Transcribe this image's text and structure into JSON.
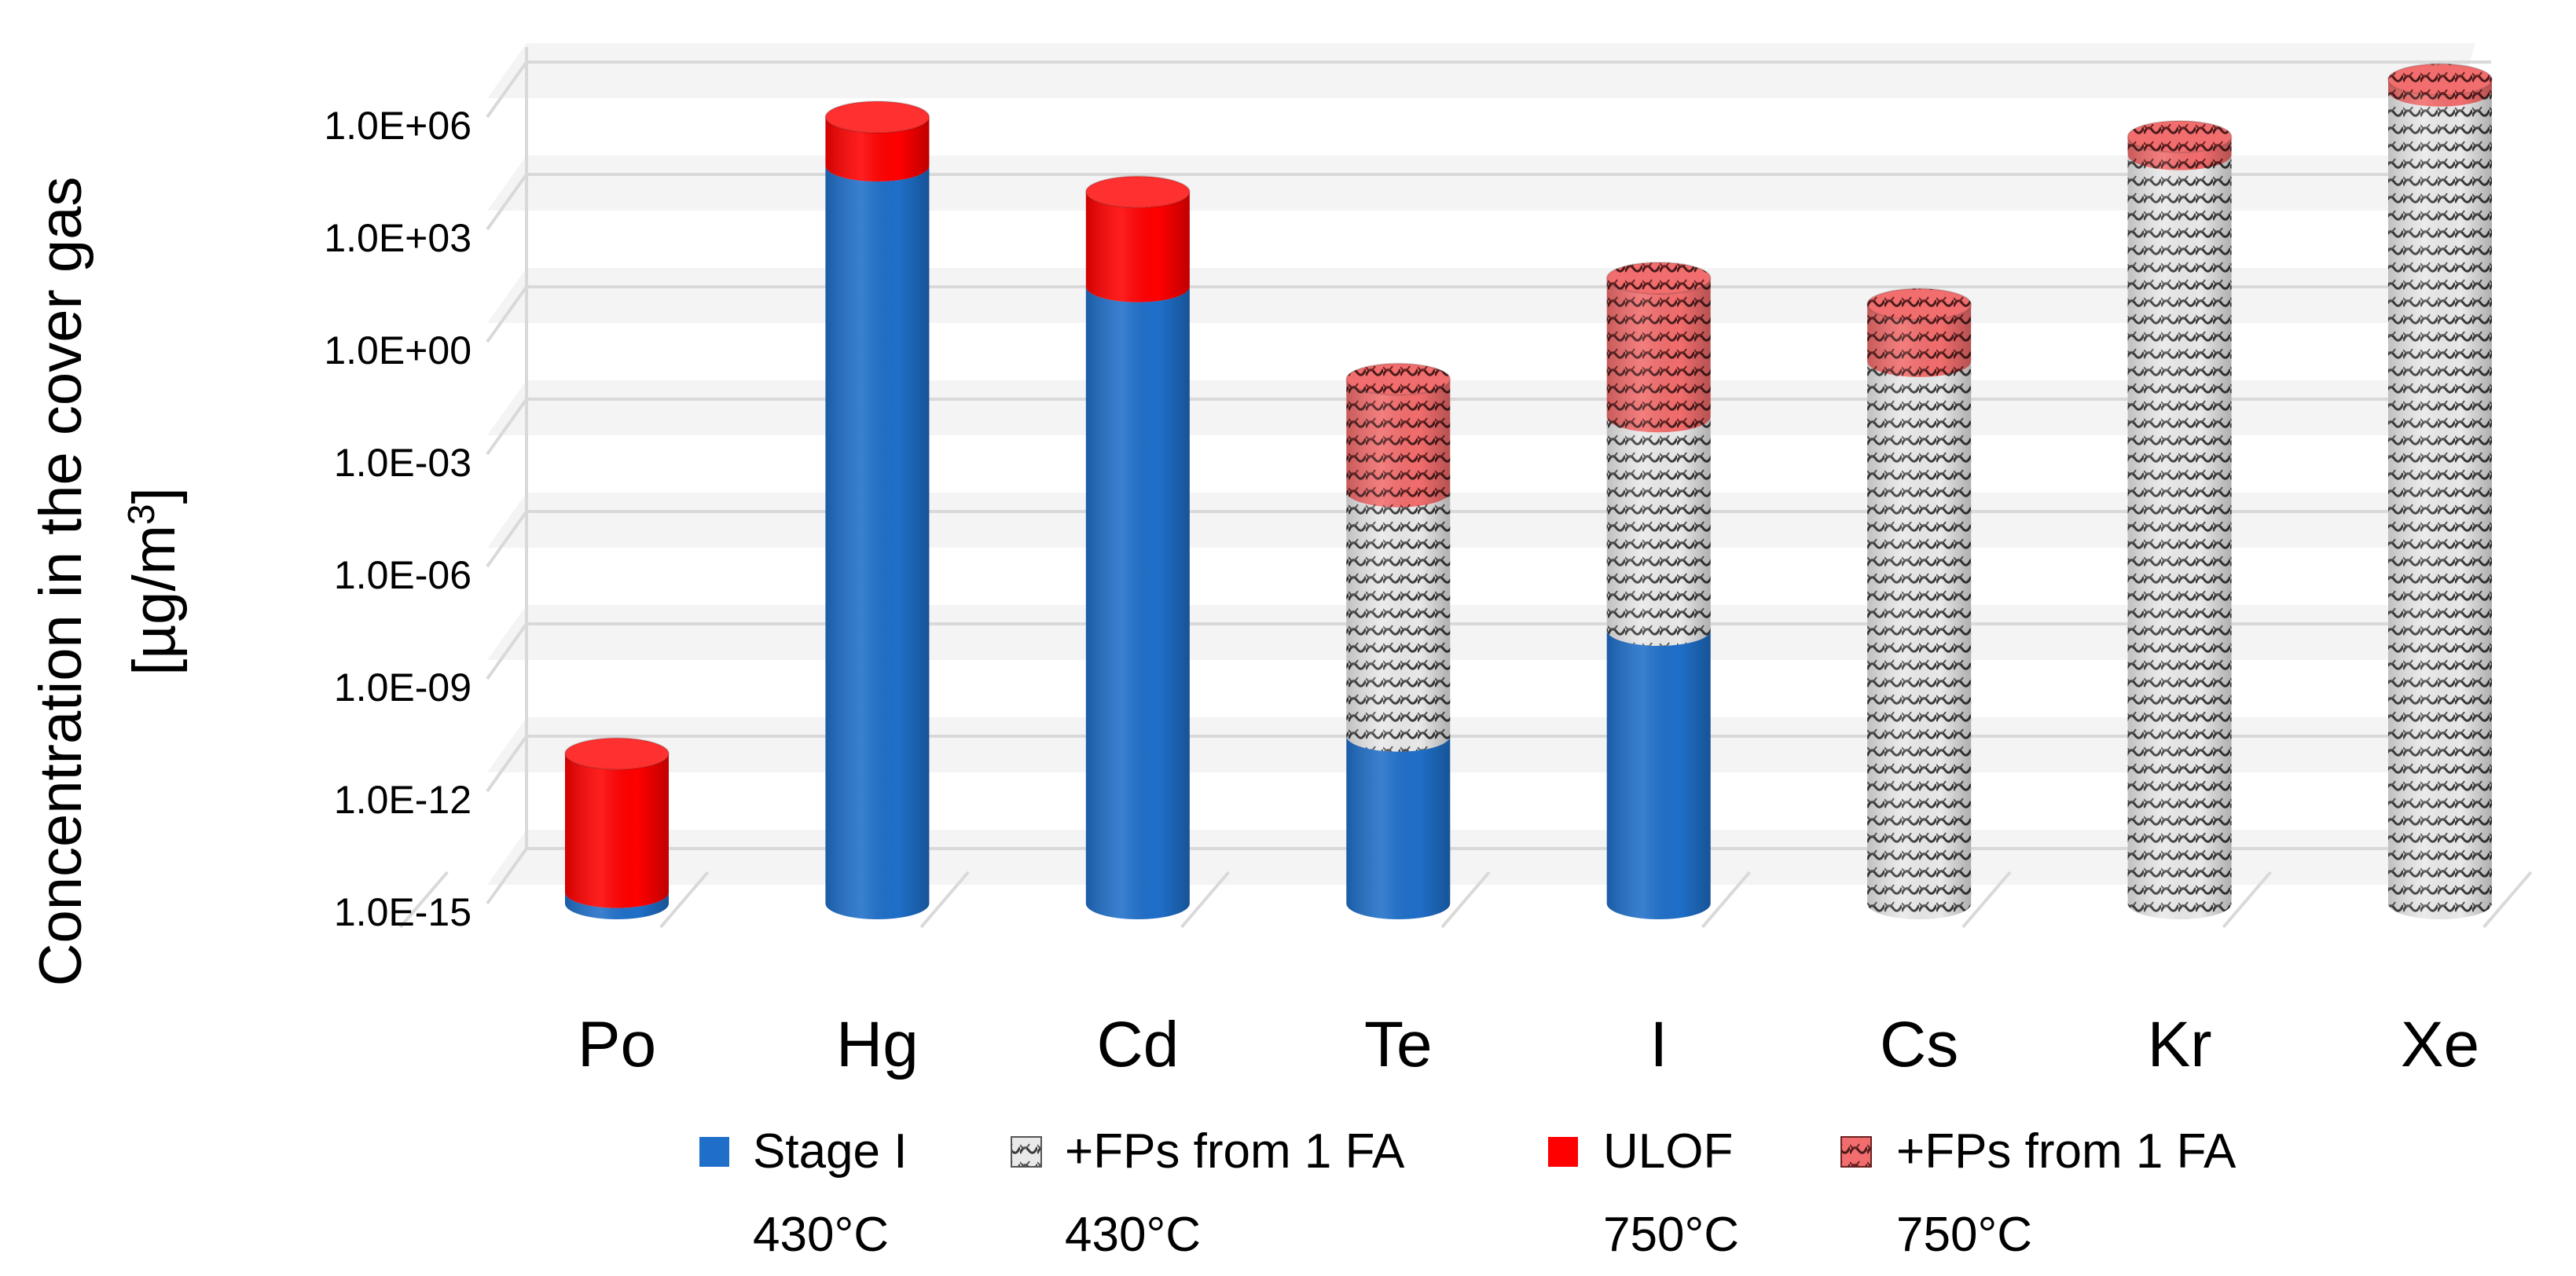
{
  "chart_data": {
    "type": "bar",
    "style": "3d-cylinder-stacked-log",
    "ylabel_line1": "Concentration in the cover gas",
    "ylabel_line2_prefix": "[µg/m",
    "ylabel_line2_sup": "3",
    "ylabel_line2_suffix": "]",
    "yscale": "log",
    "ylim": [
      1e-15,
      10000000.0
    ],
    "tick_values": [
      1e-15,
      1e-12,
      1e-09,
      1e-06,
      0.001,
      1,
      1000.0,
      1000000.0
    ],
    "tick_labels": [
      "1.0E-15",
      "1.0E-12",
      "1.0E-09",
      "1.0E-06",
      "1.0E-03",
      "1.0E+00",
      "1.0E+03",
      "1.0E+06"
    ],
    "categories": [
      "Po",
      "Hg",
      "Cd",
      "Te",
      "I",
      "Cs",
      "Kr",
      "Xe"
    ],
    "series": [
      {
        "key": "s1",
        "name_line1": "Stage I",
        "name_line2": "430°C",
        "fill": "blue",
        "values": [
          2e-15,
          50000.0,
          30.0,
          3e-11,
          2e-08,
          null,
          null,
          null
        ]
      },
      {
        "key": "s2",
        "name_line1": "+FPs from 1 FA",
        "name_line2": "430°C",
        "fill": "gray-hatch",
        "values": [
          null,
          null,
          null,
          0.0001,
          0.01,
          0.3,
          100000.0,
          5000000.0
        ]
      },
      {
        "key": "s3",
        "name_line1": "ULOF",
        "name_line2": "750°C",
        "fill": "red",
        "values": [
          1e-11,
          1000000.0,
          10000.0,
          null,
          null,
          null,
          null,
          null
        ]
      },
      {
        "key": "s4",
        "name_line1": "+FPs from 1 FA",
        "name_line2": "750°C",
        "fill": "red-hatch",
        "values": [
          null,
          null,
          null,
          0.1,
          50.0,
          10.0,
          300000.0,
          10000000.0
        ]
      }
    ]
  },
  "colors": {
    "blue": "#1f6fc9",
    "blue_dark": "#165396",
    "red": "#ff0000",
    "red_dark": "#c40000",
    "red_hatch_bg": "#f26d6d",
    "gray_hatch_bg": "#e9e9e9",
    "grid": "#d9d9d9",
    "wall_band": "#ebebeb"
  }
}
